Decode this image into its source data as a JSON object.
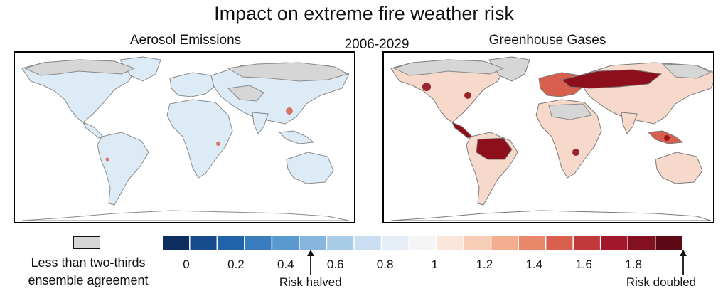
{
  "title": "Impact on extreme fire weather risk",
  "left_panel": {
    "title": "Aerosol Emissions",
    "background_color": "#ffffff",
    "land_tint": "#dcebf6",
    "no_agreement_color": "#d6d6d6"
  },
  "period": "2006-2029",
  "right_panel": {
    "title": "Greenhouse Gases",
    "background_color": "#ffffff",
    "land_tint": "#f7d9cb",
    "hotspot_color": "#8e0f1c",
    "no_agreement_color": "#d6d6d6"
  },
  "legend": {
    "gray_label_line1": "Less than two-thirds",
    "gray_label_line2": "ensemble agreement",
    "gray_color": "#d6d6d6",
    "colors": [
      "#0d2e5e",
      "#174a8c",
      "#2163ab",
      "#3a7dbf",
      "#5b9ad0",
      "#86b6dd",
      "#a9cce6",
      "#c9def0",
      "#e5eef7",
      "#f5f5f5",
      "#fbe6dc",
      "#f8cdb8",
      "#f4ad8e",
      "#e9876a",
      "#d85e4d",
      "#c2393b",
      "#a3172a",
      "#82101f",
      "#5e0a16"
    ],
    "ticks": [
      {
        "label": "0",
        "value": 0
      },
      {
        "label": "0.2",
        "value": 0.2
      },
      {
        "label": "0.4",
        "value": 0.4
      },
      {
        "label": "0.6",
        "value": 0.6
      },
      {
        "label": "0.8",
        "value": 0.8
      },
      {
        "label": "1",
        "value": 1.0
      },
      {
        "label": "1.2",
        "value": 1.2
      },
      {
        "label": "1.4",
        "value": 1.4
      },
      {
        "label": "1.6",
        "value": 1.6
      },
      {
        "label": "1.8",
        "value": 1.8
      }
    ],
    "annotations": [
      {
        "label": "Risk halved",
        "value": 0.5
      },
      {
        "label": "Risk doubled",
        "value": 2.0
      }
    ]
  }
}
